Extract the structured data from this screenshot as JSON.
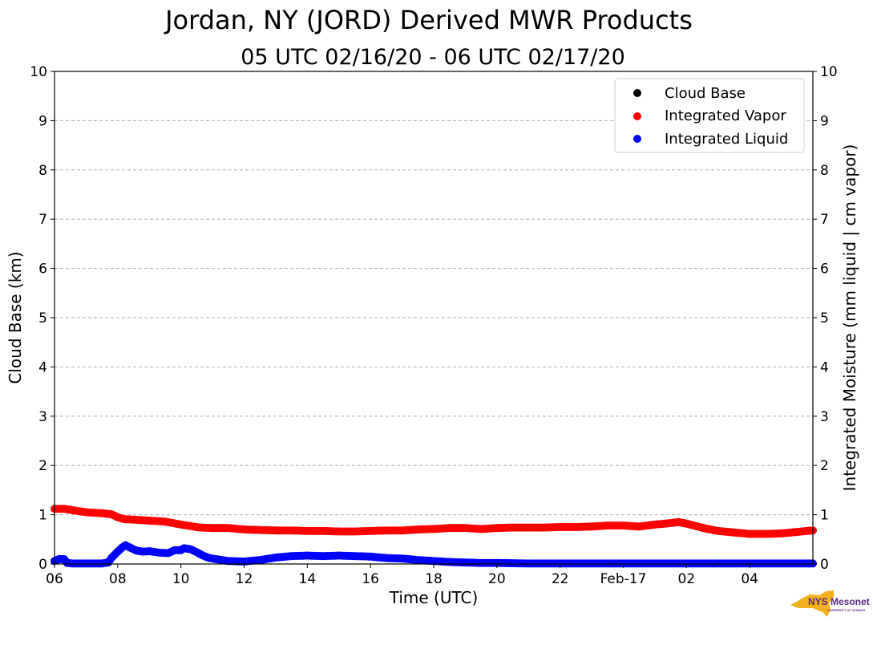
{
  "header": {
    "title": "Jordan, NY (JORD) Derived MWR Products",
    "subtitle": "05 UTC 02/16/20 - 06 UTC 02/17/20"
  },
  "logo": {
    "text": "NYS Mesonet",
    "subtext": "UNIVERSITY AT ALBANY"
  },
  "colors": {
    "cloud_base": "#000000",
    "vapor": "#ff0000",
    "liquid": "#0000ff"
  },
  "chart_data": {
    "type": "scatter",
    "xlabel": "Time (UTC)",
    "ylabel_left": "Cloud Base (km)",
    "ylabel_right": "Integrated Moisture (mm liquid | cm vapor)",
    "x_unit": "hours since 06 UTC 02/16/20",
    "xlim": [
      0,
      24
    ],
    "ylim": [
      0,
      10
    ],
    "grid": true,
    "legend_position": "top-right",
    "x_ticks": [
      {
        "x": 0,
        "label": "06"
      },
      {
        "x": 2,
        "label": "08"
      },
      {
        "x": 4,
        "label": "10"
      },
      {
        "x": 6,
        "label": "12"
      },
      {
        "x": 8,
        "label": "14"
      },
      {
        "x": 10,
        "label": "16"
      },
      {
        "x": 12,
        "label": "18"
      },
      {
        "x": 14,
        "label": "20"
      },
      {
        "x": 16,
        "label": "22"
      },
      {
        "x": 18,
        "label": "Feb-17"
      },
      {
        "x": 20,
        "label": "02"
      },
      {
        "x": 22,
        "label": "04"
      }
    ],
    "y_ticks": [
      "0",
      "1",
      "2",
      "3",
      "4",
      "5",
      "6",
      "7",
      "8",
      "9",
      "10"
    ],
    "series": [
      {
        "name": "Cloud Base",
        "color": "#000000",
        "points": []
      },
      {
        "name": "Integrated Vapor",
        "color": "#ff0000",
        "points": [
          [
            0,
            1.12
          ],
          [
            0.3,
            1.12
          ],
          [
            0.5,
            1.1
          ],
          [
            1,
            1.05
          ],
          [
            1.5,
            1.03
          ],
          [
            1.8,
            1.01
          ],
          [
            2,
            0.95
          ],
          [
            2.2,
            0.91
          ],
          [
            2.5,
            0.9
          ],
          [
            3,
            0.88
          ],
          [
            3.5,
            0.86
          ],
          [
            4,
            0.8
          ],
          [
            4.3,
            0.77
          ],
          [
            4.6,
            0.74
          ],
          [
            5,
            0.73
          ],
          [
            5.5,
            0.73
          ],
          [
            6,
            0.7
          ],
          [
            6.5,
            0.69
          ],
          [
            7,
            0.68
          ],
          [
            7.5,
            0.68
          ],
          [
            8,
            0.67
          ],
          [
            8.5,
            0.67
          ],
          [
            9,
            0.66
          ],
          [
            9.5,
            0.66
          ],
          [
            10,
            0.67
          ],
          [
            10.5,
            0.68
          ],
          [
            11,
            0.68
          ],
          [
            11.5,
            0.7
          ],
          [
            12,
            0.71
          ],
          [
            12.5,
            0.73
          ],
          [
            13,
            0.73
          ],
          [
            13.5,
            0.71
          ],
          [
            14,
            0.73
          ],
          [
            14.5,
            0.74
          ],
          [
            15,
            0.74
          ],
          [
            15.5,
            0.74
          ],
          [
            16,
            0.75
          ],
          [
            16.5,
            0.75
          ],
          [
            17,
            0.76
          ],
          [
            17.5,
            0.78
          ],
          [
            18,
            0.78
          ],
          [
            18.5,
            0.76
          ],
          [
            19,
            0.8
          ],
          [
            19.5,
            0.83
          ],
          [
            19.75,
            0.85
          ],
          [
            20,
            0.82
          ],
          [
            20.3,
            0.77
          ],
          [
            20.6,
            0.72
          ],
          [
            21,
            0.67
          ],
          [
            21.5,
            0.64
          ],
          [
            22,
            0.61
          ],
          [
            22.5,
            0.61
          ],
          [
            23,
            0.62
          ],
          [
            23.5,
            0.65
          ],
          [
            23.8,
            0.67
          ],
          [
            24,
            0.68
          ]
        ]
      },
      {
        "name": "Integrated Liquid",
        "color": "#0000ff",
        "points": [
          [
            0,
            0.06
          ],
          [
            0.15,
            0.1
          ],
          [
            0.3,
            0.1
          ],
          [
            0.4,
            0.02
          ],
          [
            0.6,
            0.01
          ],
          [
            1.5,
            0.01
          ],
          [
            1.7,
            0.03
          ],
          [
            1.8,
            0.12
          ],
          [
            2,
            0.25
          ],
          [
            2.15,
            0.34
          ],
          [
            2.25,
            0.38
          ],
          [
            2.4,
            0.33
          ],
          [
            2.6,
            0.27
          ],
          [
            2.8,
            0.25
          ],
          [
            3,
            0.26
          ],
          [
            3.3,
            0.23
          ],
          [
            3.6,
            0.22
          ],
          [
            3.8,
            0.28
          ],
          [
            4,
            0.28
          ],
          [
            4.1,
            0.32
          ],
          [
            4.3,
            0.3
          ],
          [
            4.5,
            0.24
          ],
          [
            4.7,
            0.17
          ],
          [
            4.9,
            0.12
          ],
          [
            5.2,
            0.09
          ],
          [
            5.5,
            0.06
          ],
          [
            6,
            0.05
          ],
          [
            6.5,
            0.08
          ],
          [
            7,
            0.13
          ],
          [
            7.5,
            0.16
          ],
          [
            8,
            0.17
          ],
          [
            8.5,
            0.16
          ],
          [
            9,
            0.17
          ],
          [
            9.5,
            0.16
          ],
          [
            10,
            0.15
          ],
          [
            10.5,
            0.12
          ],
          [
            11,
            0.11
          ],
          [
            11.5,
            0.08
          ],
          [
            12,
            0.06
          ],
          [
            12.5,
            0.04
          ],
          [
            13,
            0.03
          ],
          [
            13.5,
            0.02
          ],
          [
            14,
            0.02
          ],
          [
            15,
            0.01
          ],
          [
            16,
            0.01
          ],
          [
            17,
            0.01
          ],
          [
            18,
            0.01
          ],
          [
            20,
            0.01
          ],
          [
            22,
            0.01
          ],
          [
            24,
            0.01
          ]
        ]
      }
    ]
  }
}
